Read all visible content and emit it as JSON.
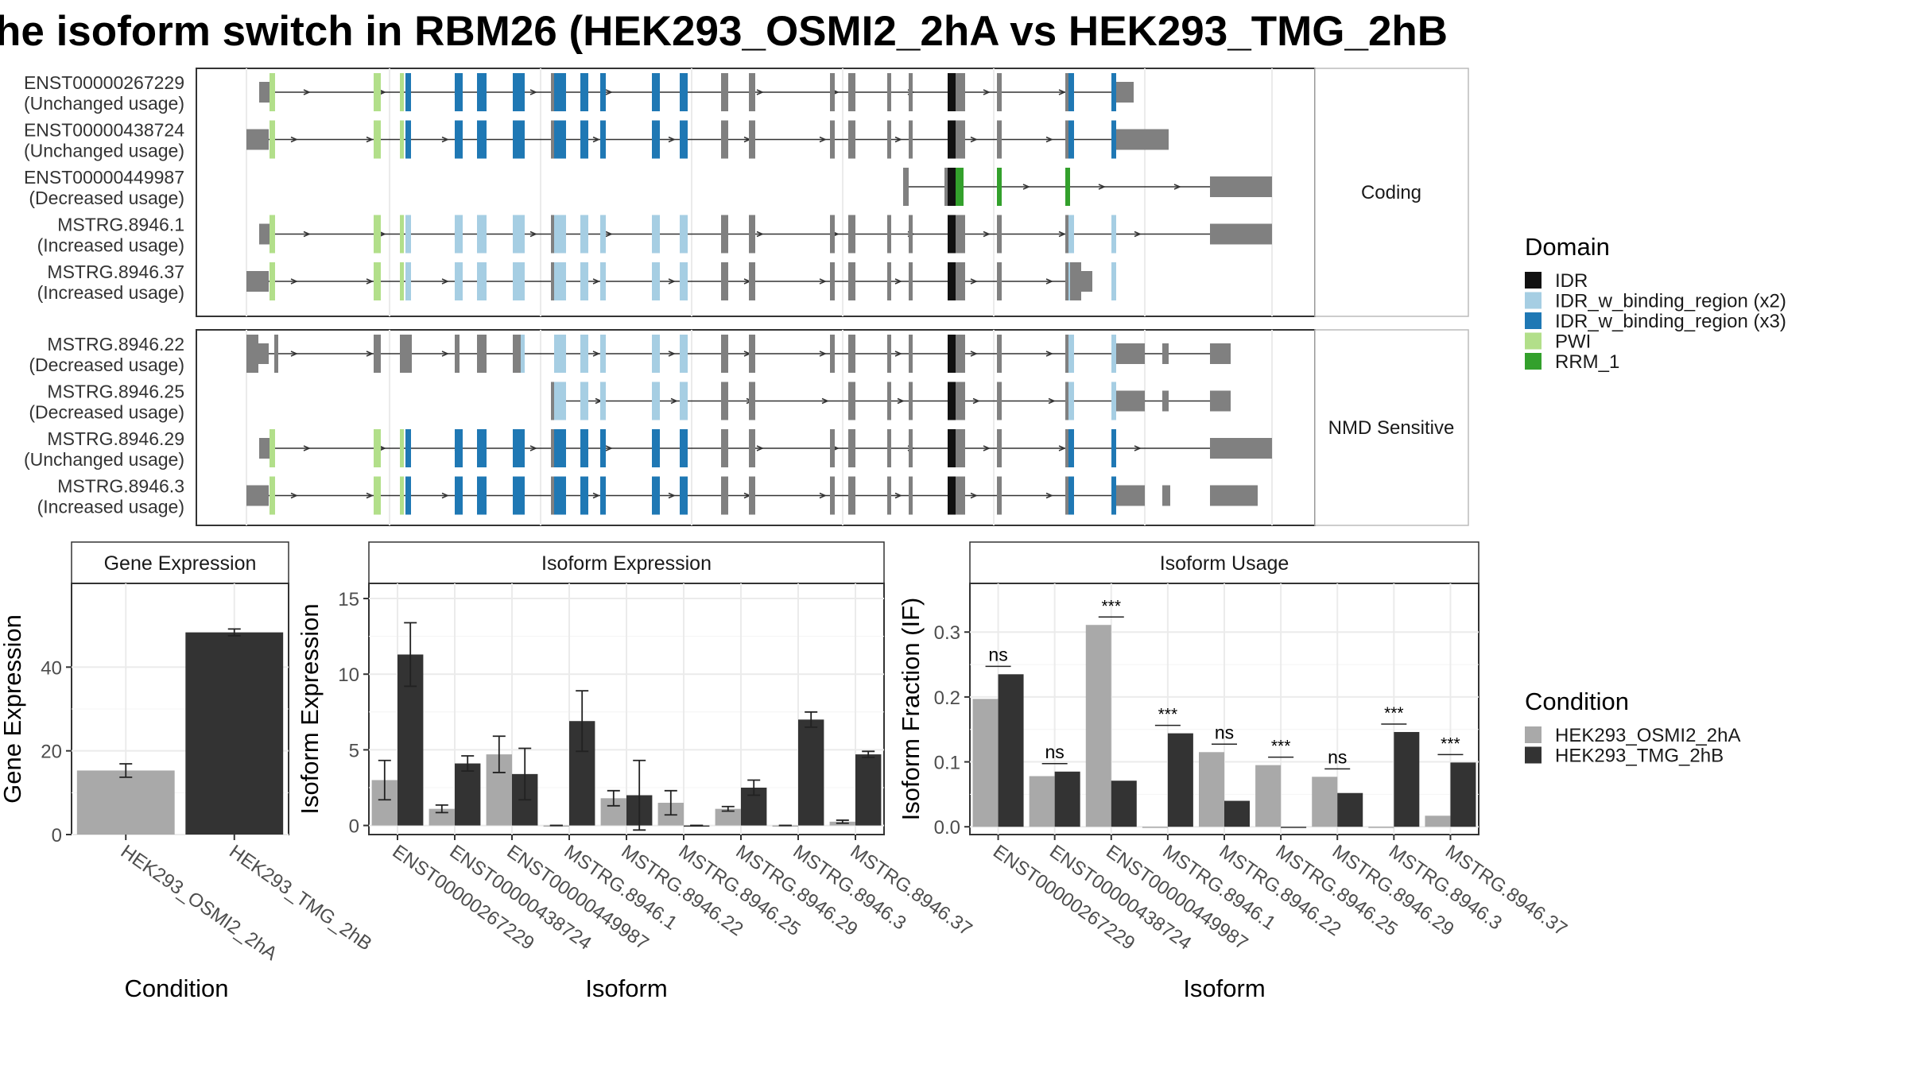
{
  "title": "he isoform switch in RBM26 (HEK293_OSMI2_2hA vs HEK293_TMG_2hB",
  "colors": {
    "idr": "#111111",
    "idr_x2": "#a6cee3",
    "idr_x3": "#1f78b4",
    "pwi": "#b2df8a",
    "rrm1": "#33a02c",
    "exon": "#808080",
    "cond_a": "#a9a9a9",
    "cond_b": "#333333"
  },
  "legends": {
    "domain": {
      "title": "Domain",
      "entries": [
        {
          "label": "IDR",
          "color": "#111111"
        },
        {
          "label": "IDR_w_binding_region (x2)",
          "color": "#a6cee3"
        },
        {
          "label": "IDR_w_binding_region (x3)",
          "color": "#1f78b4"
        },
        {
          "label": "PWI",
          "color": "#b2df8a"
        },
        {
          "label": "RRM_1",
          "color": "#33a02c"
        }
      ]
    },
    "condition": {
      "title": "Condition",
      "entries": [
        {
          "label": "HEK293_OSMI2_2hA",
          "color": "#a9a9a9"
        },
        {
          "label": "HEK293_TMG_2hB",
          "color": "#333333"
        }
      ]
    }
  },
  "chart_data": [
    {
      "type": "gene_structure",
      "panels": [
        {
          "strip": "Coding",
          "transcripts": [
            {
              "id": "ENST00000267229",
              "usage": "(Unchanged usage)",
              "profile": "full_x3",
              "start_trim": true,
              "end_tail": 0
            },
            {
              "id": "ENST00000438724",
              "usage": "(Unchanged usage)",
              "profile": "full_x3",
              "start_trim": false,
              "end_tail": 1
            },
            {
              "id": "ENST00000449987",
              "usage": "(Decreased usage)",
              "profile": "short_rrm",
              "start_trim": true,
              "end_tail": 3
            },
            {
              "id": "MSTRG.8946.1",
              "usage": "(Increased usage)",
              "profile": "full_x2",
              "start_trim": true,
              "end_tail": 3
            },
            {
              "id": "MSTRG.8946.37",
              "usage": "(Increased usage)",
              "profile": "full_x2_short",
              "start_trim": false,
              "end_tail": 0
            }
          ]
        },
        {
          "strip": "NMD Sensitive",
          "transcripts": [
            {
              "id": "MSTRG.8946.22",
              "usage": "(Decreased usage)",
              "profile": "nmd_grey",
              "start_trim": false,
              "end_tail": 2
            },
            {
              "id": "MSTRG.8946.25",
              "usage": "(Decreased usage)",
              "profile": "nmd_mid",
              "start_trim": true,
              "end_tail": 2
            },
            {
              "id": "MSTRG.8946.29",
              "usage": "(Unchanged usage)",
              "profile": "full_x3",
              "start_trim": true,
              "end_tail": 2
            },
            {
              "id": "MSTRG.8946.3",
              "usage": "(Increased usage)",
              "profile": "full_x3",
              "start_trim": false,
              "end_tail": 4
            }
          ]
        }
      ]
    },
    {
      "type": "bar",
      "title": "Gene Expression",
      "xlabel": "Condition",
      "ylabel": "Gene Expression",
      "categories": [
        "HEK293_OSMI2_2hA",
        "HEK293_TMG_2hB"
      ],
      "values": [
        15.3,
        48.3
      ],
      "errors": [
        1.6,
        0.8
      ],
      "ylim": [
        0,
        60
      ],
      "yticks": [
        0,
        20,
        40
      ]
    },
    {
      "type": "bar",
      "title": "Isoform Expression",
      "xlabel": "Isoform",
      "ylabel": "Isoform Expression",
      "categories": [
        "ENST00000267229",
        "ENST00000438724",
        "ENST00000449987",
        "MSTRG.8946.1",
        "MSTRG.8946.22",
        "MSTRG.8946.25",
        "MSTRG.8946.29",
        "MSTRG.8946.3",
        "MSTRG.8946.37"
      ],
      "series": [
        {
          "name": "HEK293_OSMI2_2hA",
          "values": [
            3.0,
            1.1,
            4.7,
            0.0,
            1.8,
            1.5,
            1.1,
            0.0,
            0.25
          ],
          "errors": [
            1.3,
            0.25,
            1.2,
            0.0,
            0.5,
            0.8,
            0.15,
            0.0,
            0.1
          ]
        },
        {
          "name": "HEK293_TMG_2hB",
          "values": [
            11.3,
            4.1,
            3.4,
            6.9,
            2.0,
            0.0,
            2.5,
            7.0,
            4.7
          ],
          "errors": [
            2.1,
            0.5,
            1.7,
            2.0,
            2.3,
            0.0,
            0.5,
            0.5,
            0.2
          ]
        }
      ],
      "ylim": [
        -0.6,
        16.0
      ],
      "yticks": [
        0,
        5,
        10,
        15
      ]
    },
    {
      "type": "bar",
      "title": "Isoform Usage",
      "xlabel": "Isoform",
      "ylabel": "Isoform Fraction (IF)",
      "categories": [
        "ENST00000267229",
        "ENST00000438724",
        "ENST00000449987",
        "MSTRG.8946.1",
        "MSTRG.8946.22",
        "MSTRG.8946.25",
        "MSTRG.8946.29",
        "MSTRG.8946.3",
        "MSTRG.8946.37"
      ],
      "series": [
        {
          "name": "HEK293_OSMI2_2hA",
          "values": [
            0.197,
            0.078,
            0.311,
            0.0,
            0.115,
            0.095,
            0.077,
            0.0,
            0.017
          ]
        },
        {
          "name": "HEK293_TMG_2hB",
          "values": [
            0.235,
            0.085,
            0.071,
            0.144,
            0.04,
            0.0,
            0.052,
            0.146,
            0.099
          ]
        }
      ],
      "significance": [
        "ns",
        "ns",
        "***",
        "***",
        "ns",
        "***",
        "ns",
        "***",
        "***"
      ],
      "ylim": [
        -0.012,
        0.375
      ],
      "yticks": [
        0.0,
        0.1,
        0.2,
        0.3
      ]
    }
  ]
}
